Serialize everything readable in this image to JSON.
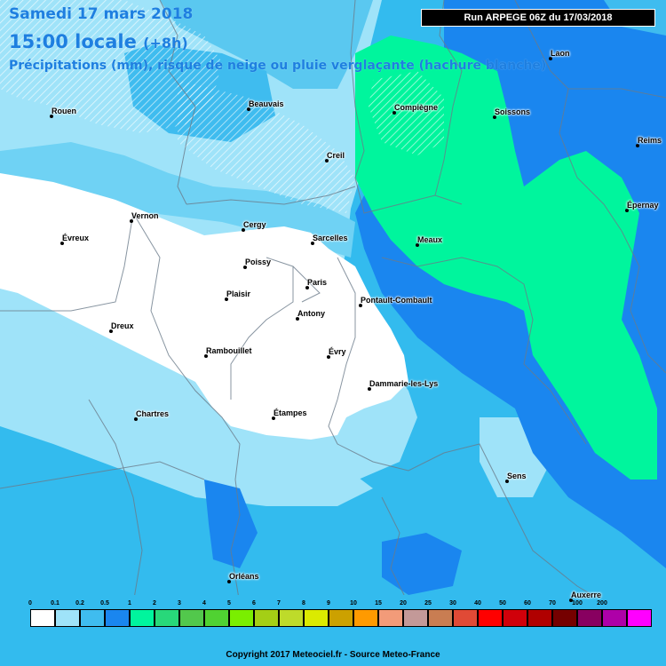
{
  "header": {
    "date": "Samedi 17 mars 2018",
    "time": "15:00 locale",
    "time_offset": "(+8h)",
    "description": "Précipitations (mm), risque de neige ou pluie verglaçante (hachure blanche)"
  },
  "run_label": "Run ARPEGE 06Z du 17/03/2018",
  "cities": [
    {
      "name": "Rouen"
    },
    {
      "name": "Beauvais"
    },
    {
      "name": "Compiègne"
    },
    {
      "name": "Soissons"
    },
    {
      "name": "Laon"
    },
    {
      "name": "Reims"
    },
    {
      "name": "Creil"
    },
    {
      "name": "Épernay"
    },
    {
      "name": "Vernon"
    },
    {
      "name": "Évreux"
    },
    {
      "name": "Cergy"
    },
    {
      "name": "Sarcelles"
    },
    {
      "name": "Meaux"
    },
    {
      "name": "Poissy"
    },
    {
      "name": "Paris"
    },
    {
      "name": "Plaisir"
    },
    {
      "name": "Pontault-Combault"
    },
    {
      "name": "Antony"
    },
    {
      "name": "Dreux"
    },
    {
      "name": "Rambouillet"
    },
    {
      "name": "Évry"
    },
    {
      "name": "Dammarie-les-Lys"
    },
    {
      "name": "Chartres"
    },
    {
      "name": "Étampes"
    },
    {
      "name": "Sens"
    },
    {
      "name": "Orléans"
    },
    {
      "name": "Auxerre"
    }
  ],
  "legend": {
    "ticks": [
      "0",
      "0.1",
      "0.2",
      "0.5",
      "1",
      "2",
      "3",
      "4",
      "5",
      "6",
      "7",
      "8",
      "9",
      "10",
      "15",
      "20",
      "25",
      "30",
      "40",
      "50",
      "60",
      "70",
      "100",
      "200"
    ],
    "colors": [
      "#ffffff",
      "#9fe3f9",
      "#3fbcef",
      "#1a86ef",
      "#00f59d",
      "#28d87a",
      "#52c84c",
      "#50d232",
      "#7aef00",
      "#a4cf15",
      "#bedb2a",
      "#dbea00",
      "#cca100",
      "#ff9a00",
      "#f29b79",
      "#c39998",
      "#c97d52",
      "#e04a36",
      "#ff0000",
      "#d0000a",
      "#b00000",
      "#750000",
      "#880060",
      "#ae00a8",
      "#ff00ff"
    ]
  },
  "copyright": "Copyright 2017 Meteociel.fr - Source Meteo-France",
  "colors": {
    "bg": "#33bbee",
    "light": "#9fe3f9",
    "dark_blue": "#1a86ef",
    "green": "#00f59d",
    "snow": "#ffffff",
    "header_text": "#1e7fe0"
  }
}
